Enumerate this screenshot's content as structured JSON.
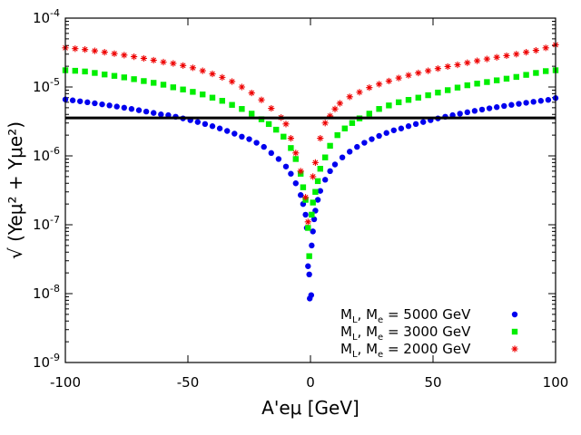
{
  "chart_data": {
    "type": "scatter",
    "title": "",
    "xlabel": "A'eμ [GeV]",
    "ylabel": "√ (Yeμ² + Yμe²)",
    "xlim": [
      -100,
      100
    ],
    "ylim_log10": [
      -9,
      -4
    ],
    "x_ticks": [
      -100,
      -50,
      0,
      50,
      100
    ],
    "x_tick_labels": [
      "-100",
      "-50",
      "0",
      "50",
      "100"
    ],
    "y_ticks_exp": [
      -9,
      -8,
      -7,
      -6,
      -5,
      -4
    ],
    "y_tick_labels": [
      {
        "base": "10",
        "exp": "-9"
      },
      {
        "base": "10",
        "exp": "-8"
      },
      {
        "base": "10",
        "exp": "-7"
      },
      {
        "base": "10",
        "exp": "-6"
      },
      {
        "base": "10",
        "exp": "-5"
      },
      {
        "base": "10",
        "exp": "-4"
      }
    ],
    "horizontal_line": {
      "y": 3.55e-06,
      "color": "#000000"
    },
    "legend_position": "bottom-right",
    "series": [
      {
        "name": "ML, Mẽ = 5000 GeV",
        "legend_prefix": "M",
        "legend_sub1": "L",
        "legend_mid": ", M",
        "legend_sub2": "e",
        "legend_suffix": " = 5000 GeV",
        "marker": "circle",
        "color": "#0000ee",
        "x": [
          -100,
          -97,
          -94,
          -91,
          -88,
          -85,
          -82,
          -79,
          -76,
          -73,
          -70,
          -67,
          -64,
          -61,
          -58,
          -55,
          -52,
          -49,
          -46,
          -43,
          -40,
          -37,
          -34,
          -31,
          -28,
          -25,
          -22,
          -19,
          -16,
          -13,
          -10,
          -8,
          -6,
          -4,
          -3,
          -2,
          -1.5,
          -1,
          -0.5,
          -0.3,
          0.3,
          0.5,
          1,
          1.5,
          2,
          3,
          4,
          6,
          8,
          10,
          13,
          16,
          19,
          22,
          25,
          28,
          31,
          34,
          37,
          40,
          43,
          46,
          49,
          52,
          55,
          58,
          61,
          64,
          67,
          70,
          73,
          76,
          79,
          82,
          85,
          88,
          91,
          94,
          97,
          100
        ],
        "y": [
          6.6e-06,
          6.4e-06,
          6.2e-06,
          6e-06,
          5.8e-06,
          5.6e-06,
          5.4e-06,
          5.2e-06,
          5e-06,
          4.8e-06,
          4.6e-06,
          4.4e-06,
          4.2e-06,
          4e-06,
          3.9e-06,
          3.7e-06,
          3.5e-06,
          3.3e-06,
          3.1e-06,
          2.9e-06,
          2.7e-06,
          2.5e-06,
          2.3e-06,
          2.1e-06,
          1.9e-06,
          1.75e-06,
          1.55e-06,
          1.35e-06,
          1.1e-06,
          9e-07,
          7e-07,
          5.5e-07,
          4e-07,
          2.7e-07,
          2e-07,
          1.4e-07,
          9e-08,
          2.5e-08,
          1.9e-08,
          8.5e-09,
          9.5e-09,
          5e-08,
          8e-08,
          1.2e-07,
          1.6e-07,
          2.3e-07,
          3.1e-07,
          4.5e-07,
          6e-07,
          7.5e-07,
          9.5e-07,
          1.15e-06,
          1.35e-06,
          1.55e-06,
          1.75e-06,
          1.95e-06,
          2.15e-06,
          2.35e-06,
          2.5e-06,
          2.7e-06,
          2.9e-06,
          3.1e-06,
          3.3e-06,
          3.5e-06,
          3.7e-06,
          3.9e-06,
          4.1e-06,
          4.3e-06,
          4.5e-06,
          4.7e-06,
          4.9e-06,
          5.1e-06,
          5.3e-06,
          5.5e-06,
          5.7e-06,
          5.9e-06,
          6.1e-06,
          6.3e-06,
          6.5e-06,
          6.9e-06
        ]
      },
      {
        "name": "ML, Mẽ = 3000 GeV",
        "legend_prefix": "M",
        "legend_sub1": "L",
        "legend_mid": ", M",
        "legend_sub2": "e",
        "legend_suffix": " = 3000 GeV",
        "marker": "square",
        "color": "#00ee00",
        "x": [
          -100,
          -96,
          -92,
          -88,
          -84,
          -80,
          -76,
          -72,
          -68,
          -64,
          -60,
          -56,
          -52,
          -48,
          -44,
          -40,
          -36,
          -32,
          -28,
          -24,
          -20,
          -17,
          -14,
          -11,
          -8,
          -6,
          -4,
          -3,
          -2,
          -1,
          -0.5,
          0.5,
          1,
          2,
          3,
          4,
          6,
          8,
          11,
          14,
          17,
          20,
          24,
          28,
          32,
          36,
          40,
          44,
          48,
          52,
          56,
          60,
          64,
          68,
          72,
          76,
          80,
          84,
          88,
          92,
          96,
          100
        ],
        "y": [
          1.75e-05,
          1.72e-05,
          1.68e-05,
          1.6e-05,
          1.52e-05,
          1.45e-05,
          1.38e-05,
          1.3e-05,
          1.22e-05,
          1.15e-05,
          1.08e-05,
          9.9e-06,
          9.2e-06,
          8.5e-06,
          7.8e-06,
          7e-06,
          6.3e-06,
          5.5e-06,
          4.8e-06,
          4.1e-06,
          3.4e-06,
          2.9e-06,
          2.4e-06,
          1.9e-06,
          1.3e-06,
          9e-07,
          5.5e-07,
          3.5e-07,
          2.3e-07,
          9e-08,
          3.5e-08,
          1.4e-07,
          2.1e-07,
          3e-07,
          4.3e-07,
          6.5e-07,
          9.5e-07,
          1.4e-06,
          2e-06,
          2.5e-06,
          3e-06,
          3.5e-06,
          4.1e-06,
          4.8e-06,
          5.4e-06,
          6e-06,
          6.5e-06,
          7e-06,
          7.6e-06,
          8.3e-06,
          9e-06,
          9.8e-06,
          1.06e-05,
          1.12e-05,
          1.18e-05,
          1.25e-05,
          1.32e-05,
          1.4e-05,
          1.5e-05,
          1.6e-05,
          1.7e-05,
          1.75e-05
        ]
      },
      {
        "name": "ML, Mẽ = 2000 GeV",
        "legend_prefix": "M",
        "legend_sub1": "L",
        "legend_mid": ", M",
        "legend_sub2": "e",
        "legend_suffix": " = 2000 GeV",
        "marker": "star",
        "color": "#ee0000",
        "x": [
          -100,
          -96,
          -92,
          -88,
          -84,
          -80,
          -76,
          -72,
          -68,
          -64,
          -60,
          -56,
          -52,
          -48,
          -44,
          -40,
          -36,
          -32,
          -28,
          -24,
          -20,
          -16,
          -12,
          -10,
          -8,
          -6,
          -4,
          -2,
          -1,
          1,
          2,
          4,
          6,
          8,
          10,
          12,
          16,
          20,
          24,
          28,
          32,
          36,
          40,
          44,
          48,
          52,
          56,
          60,
          64,
          68,
          72,
          76,
          80,
          84,
          88,
          92,
          96,
          100
        ],
        "y": [
          3.7e-05,
          3.6e-05,
          3.5e-05,
          3.35e-05,
          3.2e-05,
          3.05e-05,
          2.9e-05,
          2.75e-05,
          2.6e-05,
          2.45e-05,
          2.3e-05,
          2.2e-05,
          2.05e-05,
          1.9e-05,
          1.72e-05,
          1.55e-05,
          1.38e-05,
          1.2e-05,
          1e-05,
          8.2e-06,
          6.5e-06,
          4.9e-06,
          3.6e-06,
          2.9e-06,
          1.8e-06,
          1.1e-06,
          6e-07,
          2.5e-07,
          1.1e-07,
          5e-07,
          8e-07,
          1.8e-06,
          3e-06,
          3.8e-06,
          4.8e-06,
          5.8e-06,
          7.2e-06,
          8.4e-06,
          9.8e-06,
          1.1e-05,
          1.22e-05,
          1.35e-05,
          1.48e-05,
          1.6e-05,
          1.72e-05,
          1.85e-05,
          1.98e-05,
          2.1e-05,
          2.25e-05,
          2.4e-05,
          2.55e-05,
          2.7e-05,
          2.85e-05,
          3e-05,
          3.2e-05,
          3.4e-05,
          3.7e-05,
          4.1e-05
        ]
      }
    ]
  }
}
